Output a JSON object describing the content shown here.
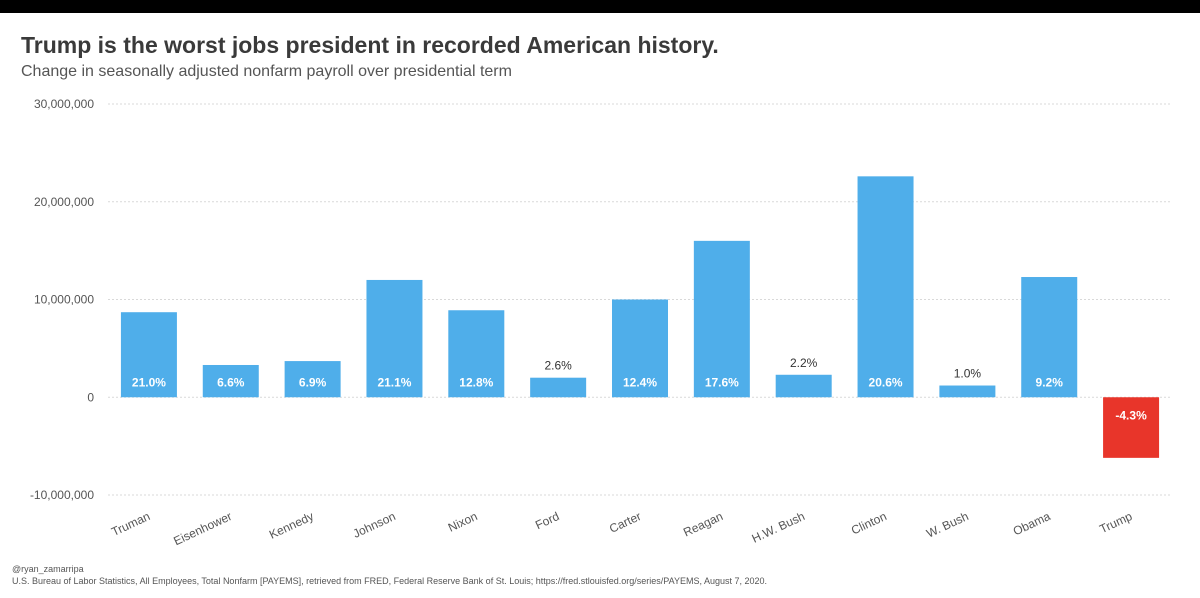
{
  "colors": {
    "bar": "#4faeea",
    "negative": "#e8352a",
    "grid": "#d9d9d9",
    "axis_text": "#555555"
  },
  "chart_data": {
    "type": "bar",
    "title": "Trump is the worst jobs president in recorded American history.",
    "subtitle": "Change in seasonally adjusted nonfarm payroll over presidential term",
    "xlabel": "",
    "ylabel": "",
    "ylim": [
      -10000000,
      30000000
    ],
    "yticks": [
      {
        "value": 30000000,
        "label": "30,000,000"
      },
      {
        "value": 20000000,
        "label": "20,000,000"
      },
      {
        "value": 10000000,
        "label": "10,000,000"
      },
      {
        "value": 0,
        "label": "0"
      },
      {
        "value": -10000000,
        "label": "-10,000,000"
      }
    ],
    "grid": true,
    "categories": [
      "Truman",
      "Eisenhower",
      "Kennedy",
      "Johnson",
      "Nixon",
      "Ford",
      "Carter",
      "Reagan",
      "H.W. Bush",
      "Clinton",
      "W. Bush",
      "Obama",
      "Trump"
    ],
    "values": [
      8700000,
      3300000,
      3700000,
      12000000,
      8900000,
      2000000,
      10000000,
      16000000,
      2300000,
      22600000,
      1200000,
      12300000,
      -6200000
    ],
    "labels": [
      "21.0%",
      "6.6%",
      "6.9%",
      "21.1%",
      "12.8%",
      "2.6%",
      "12.4%",
      "17.6%",
      "2.2%",
      "20.6%",
      "1.0%",
      "9.2%",
      "-4.3%"
    ],
    "label_positions": [
      "inside",
      "inside",
      "inside",
      "inside",
      "inside",
      "above",
      "inside",
      "inside",
      "above",
      "inside",
      "above",
      "inside",
      "inside"
    ]
  },
  "footer": {
    "credit": "@ryan_zamarripa",
    "source": "U.S. Bureau of Labor Statistics, All Employees, Total Nonfarm [PAYEMS], retrieved from FRED, Federal Reserve Bank of St. Louis; https://fred.stlouisfed.org/series/PAYEMS, August 7, 2020."
  }
}
